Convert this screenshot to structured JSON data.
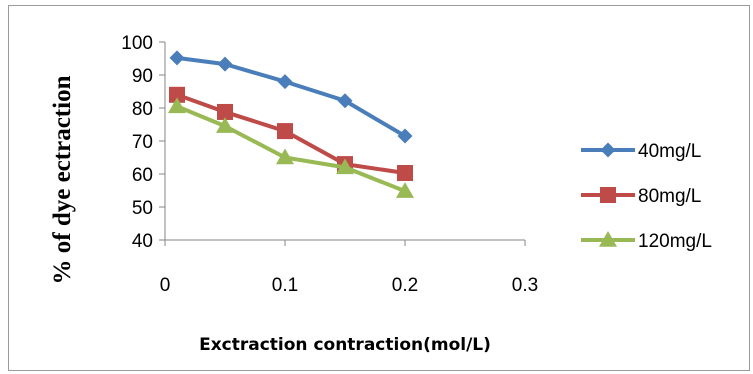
{
  "chart_data": {
    "type": "line",
    "title": "",
    "xlabel": "Exctraction contraction(mol/L)",
    "ylabel": "% of dye ectraction",
    "xlim": [
      0,
      0.3
    ],
    "ylim": [
      40,
      100
    ],
    "x_ticks": [
      0,
      0.1,
      0.2,
      0.3
    ],
    "x_tick_labels": [
      "0",
      "0.1",
      "0.2",
      "0.3"
    ],
    "y_ticks": [
      40,
      50,
      60,
      70,
      80,
      90,
      100
    ],
    "y_tick_labels": [
      "40",
      "50",
      "60",
      "70",
      "80",
      "90",
      "100"
    ],
    "grid": false,
    "legend_position": "right",
    "x": [
      0.01,
      0.05,
      0.1,
      0.15,
      0.2
    ],
    "series": [
      {
        "name": "40mg/L",
        "values": [
          95.2,
          93.3,
          88.0,
          82.2,
          71.5
        ],
        "color": "#4a7ebb",
        "marker": "diamond"
      },
      {
        "name": "80mg/L",
        "values": [
          84.0,
          78.8,
          73.0,
          63.0,
          60.3
        ],
        "color": "#be4b48",
        "marker": "square"
      },
      {
        "name": "120mg/L",
        "values": [
          80.5,
          74.5,
          65.0,
          62.0,
          54.8
        ],
        "color": "#98b954",
        "marker": "triangle"
      }
    ]
  }
}
